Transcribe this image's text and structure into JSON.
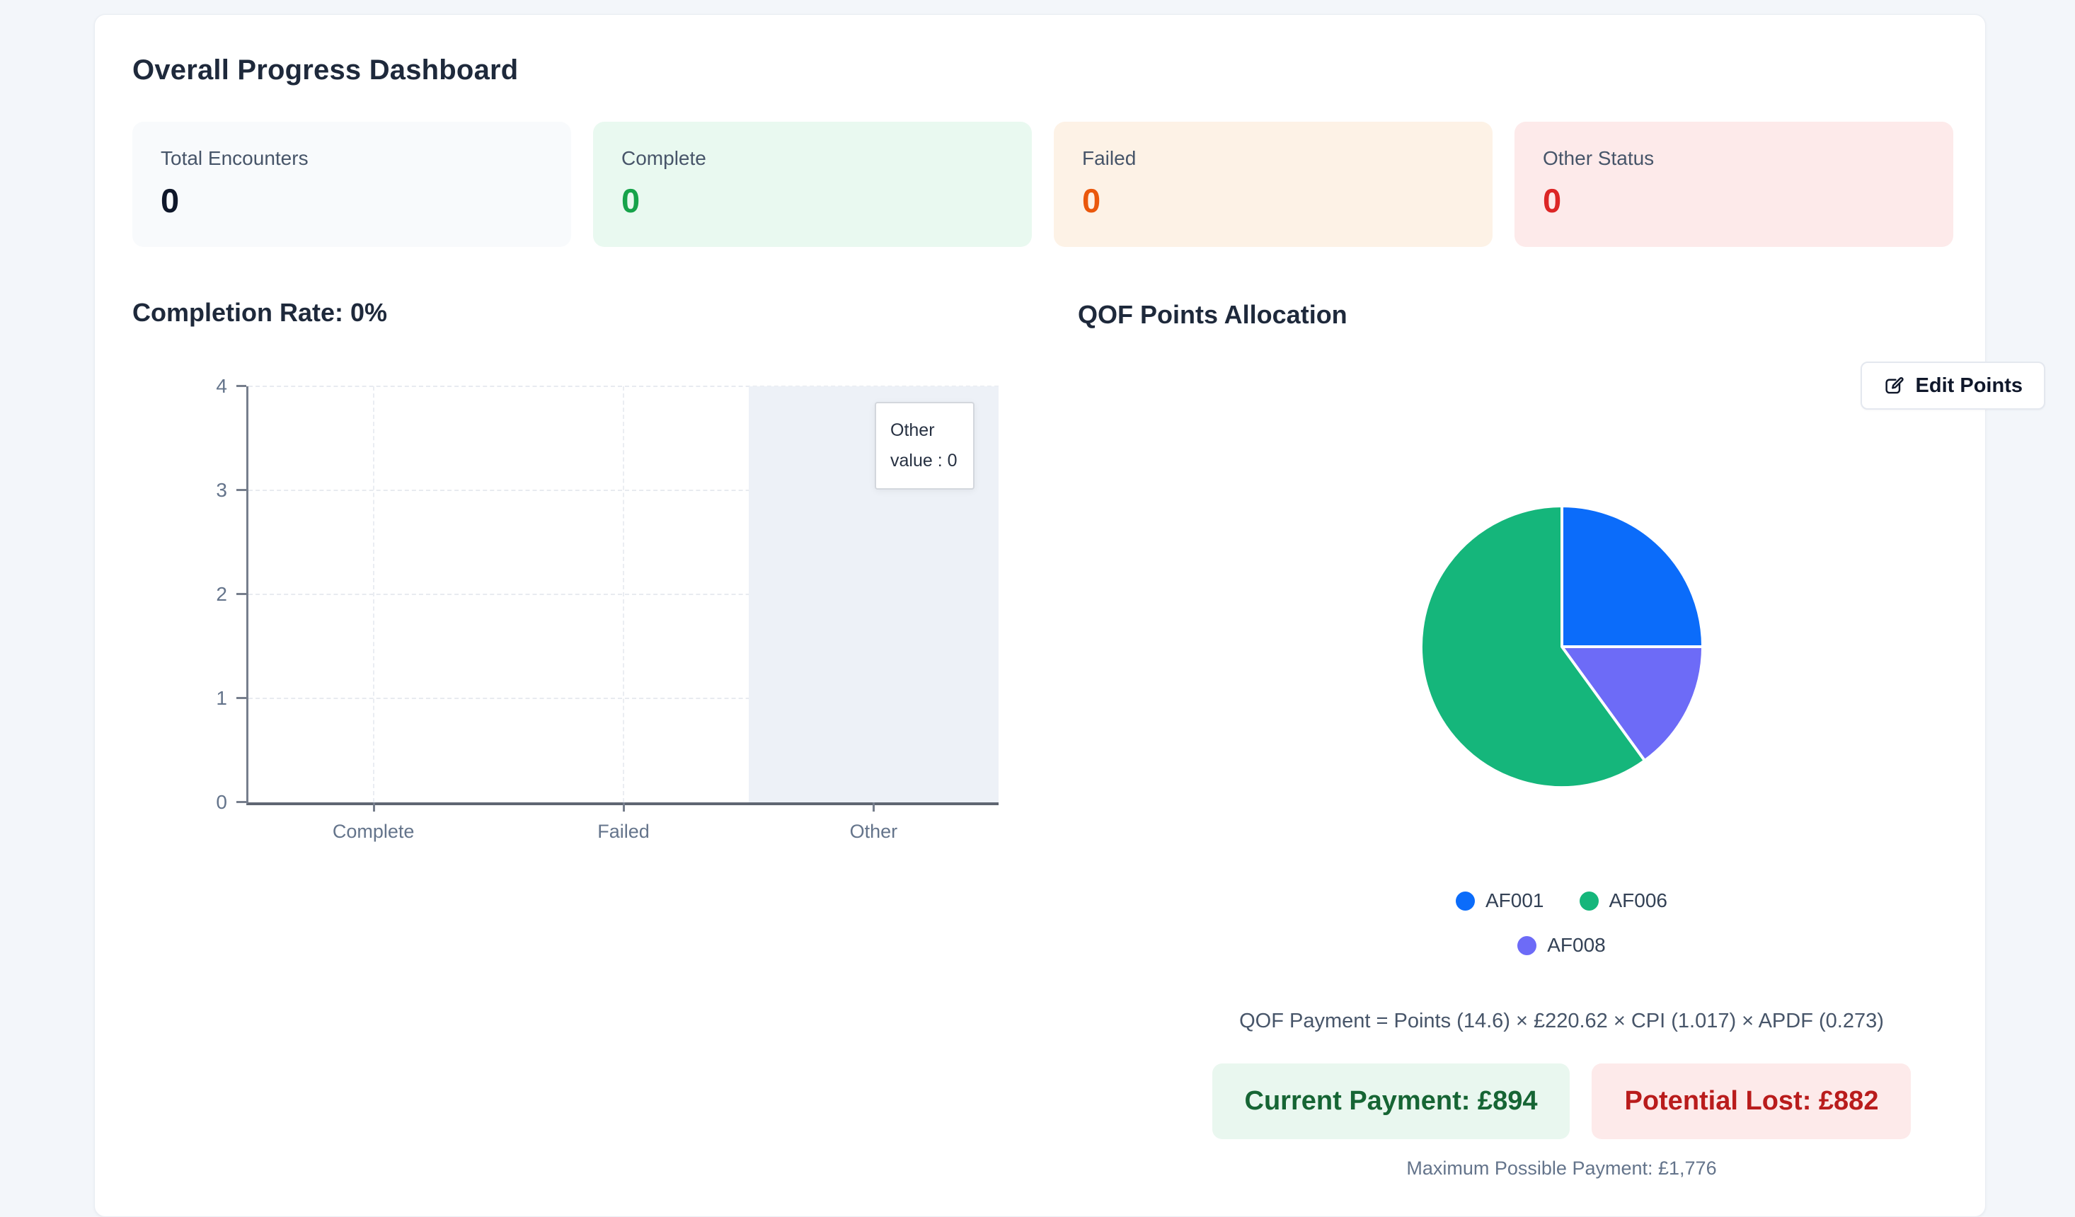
{
  "dashboard": {
    "title": "Overall Progress Dashboard",
    "stat_cards": [
      {
        "label": "Total Encounters",
        "value": "0",
        "bg": "#f8fafc",
        "value_color": "#0f172a"
      },
      {
        "label": "Complete",
        "value": "0",
        "bg": "#e9f9f0",
        "value_color": "#16a34a"
      },
      {
        "label": "Failed",
        "value": "0",
        "bg": "#fdf2e6",
        "value_color": "#ea580c"
      },
      {
        "label": "Other Status",
        "value": "0",
        "bg": "#fdeaea",
        "value_color": "#dc2626"
      }
    ],
    "completion": {
      "heading": "Completion Rate: 0%"
    },
    "qof": {
      "heading": "QOF Points Allocation",
      "edit_button_label": "Edit Points",
      "legend": [
        {
          "label": "AF001",
          "color": "#0b6cfa"
        },
        {
          "label": "AF006",
          "color": "#15b67b"
        },
        {
          "label": "AF008",
          "color": "#6d6bf7"
        }
      ],
      "formula": "QOF Payment = Points (14.6) × £220.62 × CPI (1.017) × APDF (0.273)",
      "current_payment": "Current Payment: £894",
      "potential_lost": "Potential Lost: £882",
      "max_payment": "Maximum Possible Payment: £1,776"
    }
  },
  "chart_data": [
    {
      "type": "bar",
      "title": "Completion Rate: 0%",
      "categories": [
        "Complete",
        "Failed",
        "Other"
      ],
      "values": [
        0,
        0,
        0
      ],
      "xlabel": "",
      "ylabel": "",
      "ylim": [
        0,
        4
      ],
      "yticks": [
        0,
        1,
        2,
        3,
        4
      ],
      "grid": "dashed",
      "highlighted_category": "Other",
      "tooltip": {
        "title": "Other",
        "text": "value : 0"
      }
    },
    {
      "type": "pie",
      "title": "QOF Points Allocation",
      "labels": [
        "AF001",
        "AF006",
        "AF008"
      ],
      "values_percent": [
        25,
        60,
        15
      ],
      "colors": {
        "AF001": "#0b6cfa",
        "AF006": "#15b67b",
        "AF008": "#6d6bf7"
      },
      "draw_order_clockwise_from_top": [
        {
          "label": "AF001",
          "percent": 25
        },
        {
          "label": "AF008",
          "percent": 15
        },
        {
          "label": "AF006",
          "percent": 60
        }
      ],
      "legend_position": "bottom"
    }
  ]
}
